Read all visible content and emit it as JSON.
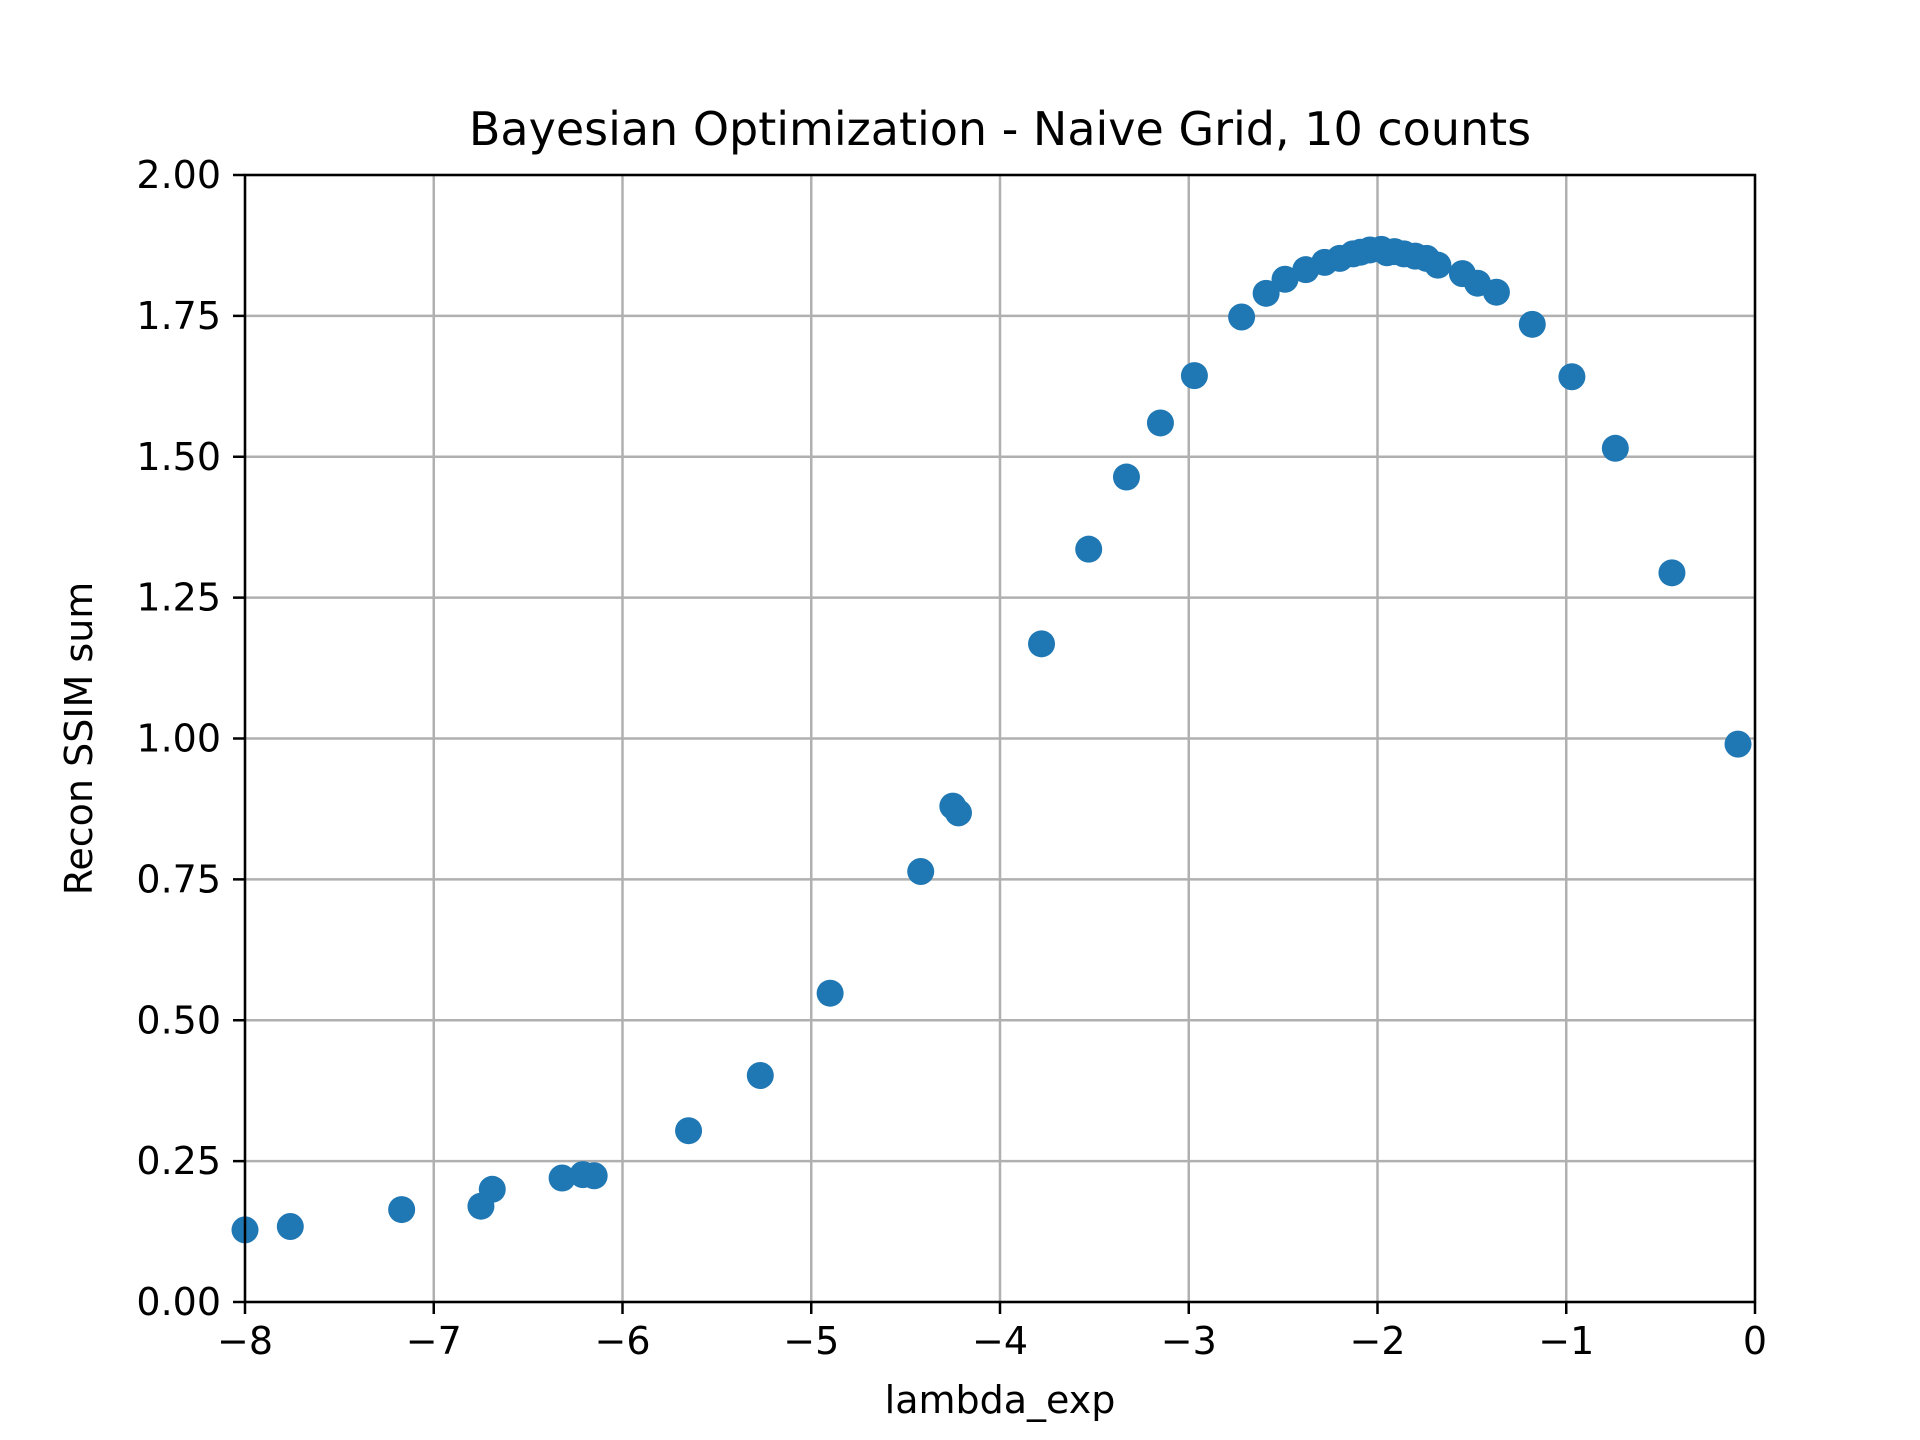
{
  "chart_data": {
    "type": "scatter",
    "title": "Bayesian Optimization - Naive Grid, 10 counts",
    "xlabel": "lambda_exp",
    "ylabel": "Recon SSIM sum",
    "xlim": [
      -8,
      0
    ],
    "ylim": [
      0,
      2
    ],
    "xticks": [
      -8,
      -7,
      -6,
      -5,
      -4,
      -3,
      -2,
      -1,
      0
    ],
    "xtick_labels": [
      "−8",
      "−7",
      "−6",
      "−5",
      "−4",
      "−3",
      "−2",
      "−1",
      "0"
    ],
    "yticks": [
      0,
      0.25,
      0.5,
      0.75,
      1.0,
      1.25,
      1.5,
      1.75,
      2.0
    ],
    "ytick_labels": [
      "0.00",
      "0.25",
      "0.50",
      "0.75",
      "1.00",
      "1.25",
      "1.50",
      "1.75",
      "2.00"
    ],
    "grid": true,
    "marker_color": "#1f77b4",
    "series": [
      {
        "x": [
          -8.0,
          -7.76,
          -7.17,
          -6.75,
          -6.69,
          -6.32,
          -6.21,
          -6.15,
          -5.65,
          -5.27,
          -4.9,
          -4.42,
          -4.25,
          -4.22,
          -3.78,
          -3.53,
          -3.33,
          -3.15,
          -2.97,
          -2.72,
          -2.59,
          -2.49,
          -2.38,
          -2.28,
          -2.2,
          -2.13,
          -2.09,
          -2.04,
          -1.98,
          -1.95,
          -1.91,
          -1.86,
          -1.8,
          -1.74,
          -1.68,
          -1.55,
          -1.47,
          -1.37,
          -1.18,
          -0.97,
          -0.74,
          -0.44,
          -0.09
        ],
        "y": [
          0.128,
          0.134,
          0.164,
          0.17,
          0.2,
          0.22,
          0.226,
          0.224,
          0.304,
          0.402,
          0.548,
          0.764,
          0.88,
          0.868,
          1.168,
          1.336,
          1.464,
          1.56,
          1.644,
          1.748,
          1.79,
          1.815,
          1.832,
          1.845,
          1.852,
          1.86,
          1.863,
          1.867,
          1.868,
          1.862,
          1.864,
          1.86,
          1.856,
          1.852,
          1.84,
          1.825,
          1.808,
          1.792,
          1.735,
          1.642,
          1.515,
          1.294,
          0.99
        ]
      }
    ]
  }
}
